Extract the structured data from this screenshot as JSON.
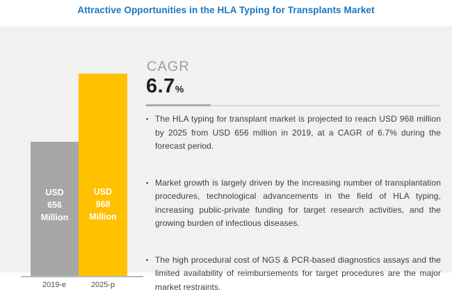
{
  "title": "Attractive Opportunities in the HLA Typing for Transplants Market",
  "chart_data": {
    "type": "bar",
    "title": "Attractive Opportunities in the HLA Typing for Transplants Market",
    "categories": [
      "2019-e",
      "2025-p"
    ],
    "values": [
      656,
      968
    ],
    "unit": "USD Million",
    "bar_labels": [
      "USD\n656\nMillion",
      "USD\n968\nMillion"
    ],
    "bar_colors": [
      "#a6a6a6",
      "#ffc000"
    ],
    "ylim": [
      0,
      1000
    ],
    "grid": false,
    "legend": "none",
    "annotations": [
      "CAGR 6.7%"
    ]
  },
  "cagr": {
    "label": "CAGR",
    "value": "6.7",
    "unit": "%"
  },
  "bullets": [
    {
      "marker": "▪",
      "text": "The HLA typing for transplant market is projected to reach USD 968 million by 2025 from USD 656 million in 2019, at a CAGR of 6.7% during the forecast period."
    },
    {
      "marker": "▪",
      "text": "Market growth is largely driven by the increasing number of transplantation procedures, technological advancements in the field of HLA typing, increasing public-private funding for target research activities, and the growing burden of infectious diseases."
    },
    {
      "marker": "▪",
      "text": "The high procedural cost of NGS & PCR-based diagnostics assays and the limited availability of reimbursements for target procedures are the major market restraints."
    }
  ],
  "colors": {
    "title_blue": "#1b76bd",
    "panel_bg": "#f1f1ef",
    "bar_gray": "#a6a6a6",
    "bar_yellow": "#ffc000",
    "bar_label_text": "#ffffff",
    "body_text": "#3d3d3d",
    "cagr_label_gray": "#9e9e9e",
    "cagr_value_black": "#1f1f1f",
    "axis_line": "#b9b9b5"
  }
}
